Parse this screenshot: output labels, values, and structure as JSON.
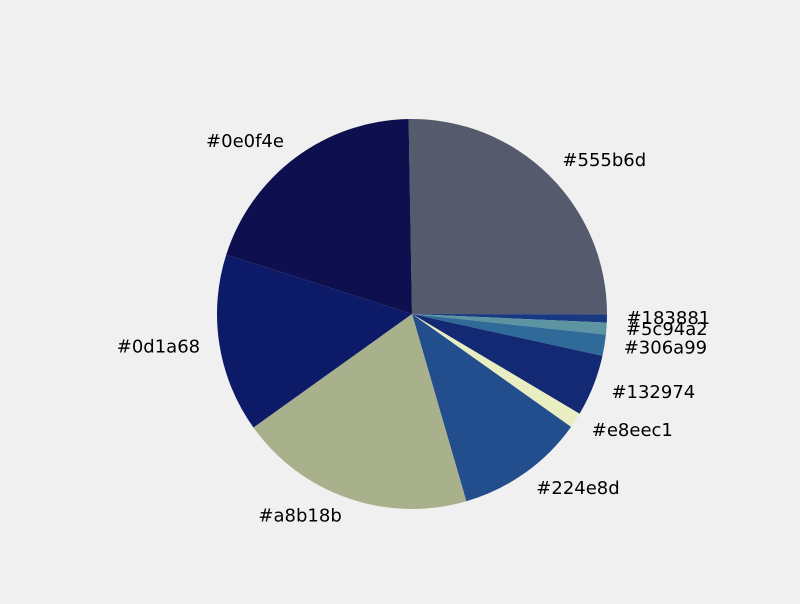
{
  "chart_data": {
    "type": "pie",
    "title": "",
    "labels": [
      "#555b6d",
      "#183881",
      "#5c94a2",
      "#306a99",
      "#132974",
      "#e8eec1",
      "#224e8d",
      "#a8b18b",
      "#0d1a68",
      "#0e0f4e"
    ],
    "values": [
      25.8,
      0.7,
      1.0,
      1.8,
      5.2,
      1.3,
      10.9,
      20.0,
      15.1,
      20.2
    ],
    "colors": [
      "#555b6d",
      "#183881",
      "#5c94a2",
      "#306a99",
      "#132974",
      "#e8eec1",
      "#224e8d",
      "#a8b18b",
      "#0d1a68",
      "#0e0f4e"
    ],
    "start_angle_deg": 91,
    "direction": "clockwise",
    "background": "#f0f0f0",
    "legend": "none"
  }
}
